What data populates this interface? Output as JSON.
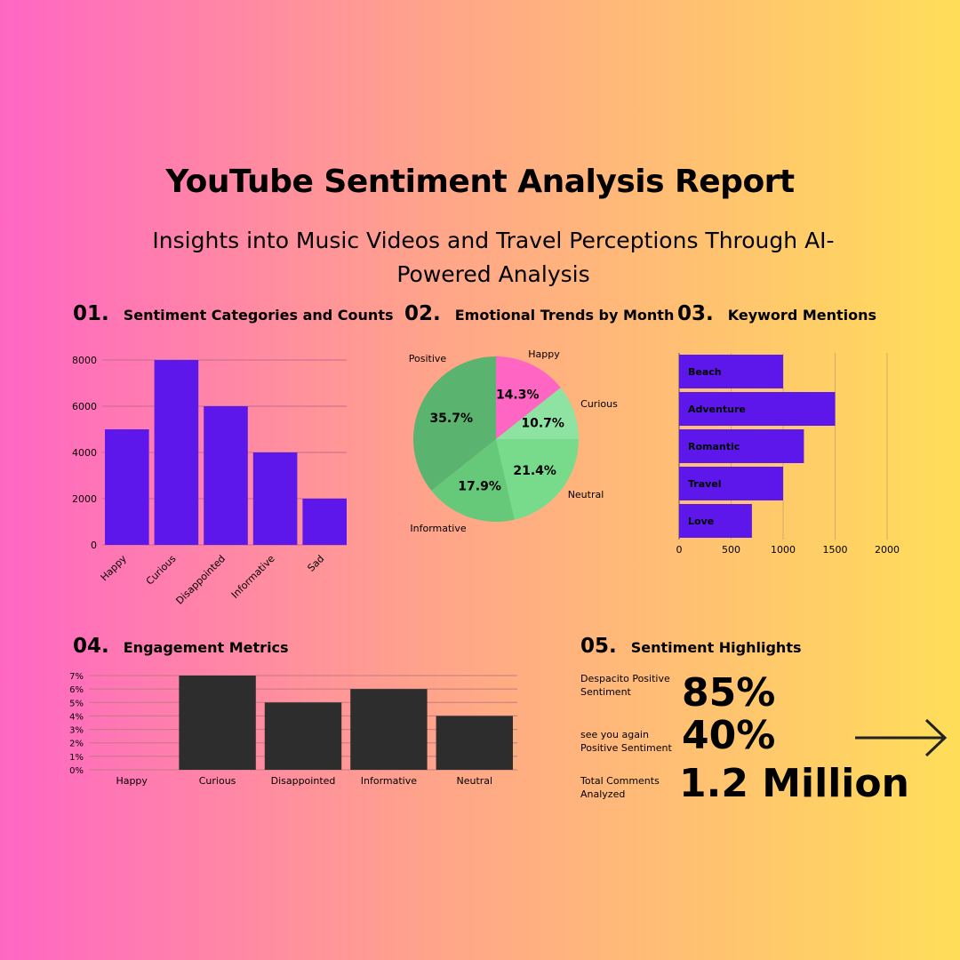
{
  "header": {
    "title": "YouTube Sentiment Analysis Report",
    "subtitle": "Insights into Music Videos and Travel Perceptions Through AI-Powered Analysis"
  },
  "sections": [
    {
      "num": "01.",
      "title": "Sentiment Categories and Counts"
    },
    {
      "num": "02.",
      "title": "Emotional Trends by Month"
    },
    {
      "num": "03.",
      "title": "Keyword Mentions"
    },
    {
      "num": "04.",
      "title": "Engagement Metrics"
    },
    {
      "num": "05.",
      "title": "Sentiment Highlights"
    }
  ],
  "highlights": [
    {
      "label": "Despacito Positive Sentiment",
      "value": "85%"
    },
    {
      "label": "see you again Positive Sentiment",
      "value": "40%"
    },
    {
      "label": "Total Comments Analyzed",
      "value": "1.2 Million"
    }
  ],
  "icons": {
    "next": "arrow-right-icon"
  },
  "chart_data": [
    {
      "type": "bar",
      "title": "Sentiment Categories and Counts",
      "categories": [
        "Happy",
        "Curious",
        "Disappointed",
        "Informative",
        "Sad"
      ],
      "values": [
        5000,
        8000,
        6000,
        4000,
        2000
      ],
      "ylim": [
        0,
        8000
      ],
      "yticks": [
        0,
        2000,
        4000,
        6000,
        8000
      ],
      "grid": true,
      "color": "#5e17eb"
    },
    {
      "type": "pie",
      "title": "Emotional Trends by Month",
      "labels": [
        "Happy",
        "Curious",
        "Neutral",
        "Informative",
        "Positive"
      ],
      "values": [
        14.3,
        10.7,
        21.4,
        17.9,
        35.7
      ],
      "value_labels": [
        "14.3%",
        "10.7%",
        "21.4%",
        "17.9%",
        "35.7%"
      ],
      "colors": [
        "#ff66c4",
        "#8ee3a3",
        "#78db8c",
        "#66c97a",
        "#5ab36e"
      ]
    },
    {
      "type": "bar",
      "orientation": "horizontal",
      "title": "Keyword Mentions",
      "categories": [
        "Beach",
        "Adventure",
        "Romantic",
        "Travel",
        "Love"
      ],
      "values": [
        1000,
        1500,
        1200,
        1000,
        700
      ],
      "xlim": [
        0,
        2000
      ],
      "xticks": [
        0,
        500,
        1000,
        1500,
        2000
      ],
      "grid": true,
      "color": "#5e17eb"
    },
    {
      "type": "bar",
      "title": "Engagement Metrics",
      "categories": [
        "Happy",
        "Curious",
        "Disappointed",
        "Informative",
        "Neutral"
      ],
      "values": [
        0,
        7,
        5,
        6,
        4
      ],
      "ylim": [
        0,
        7
      ],
      "yticks": [
        "0%",
        "1%",
        "2%",
        "3%",
        "4%",
        "5%",
        "6%",
        "7%"
      ],
      "grid": true,
      "color": "#2d2d2d"
    }
  ]
}
